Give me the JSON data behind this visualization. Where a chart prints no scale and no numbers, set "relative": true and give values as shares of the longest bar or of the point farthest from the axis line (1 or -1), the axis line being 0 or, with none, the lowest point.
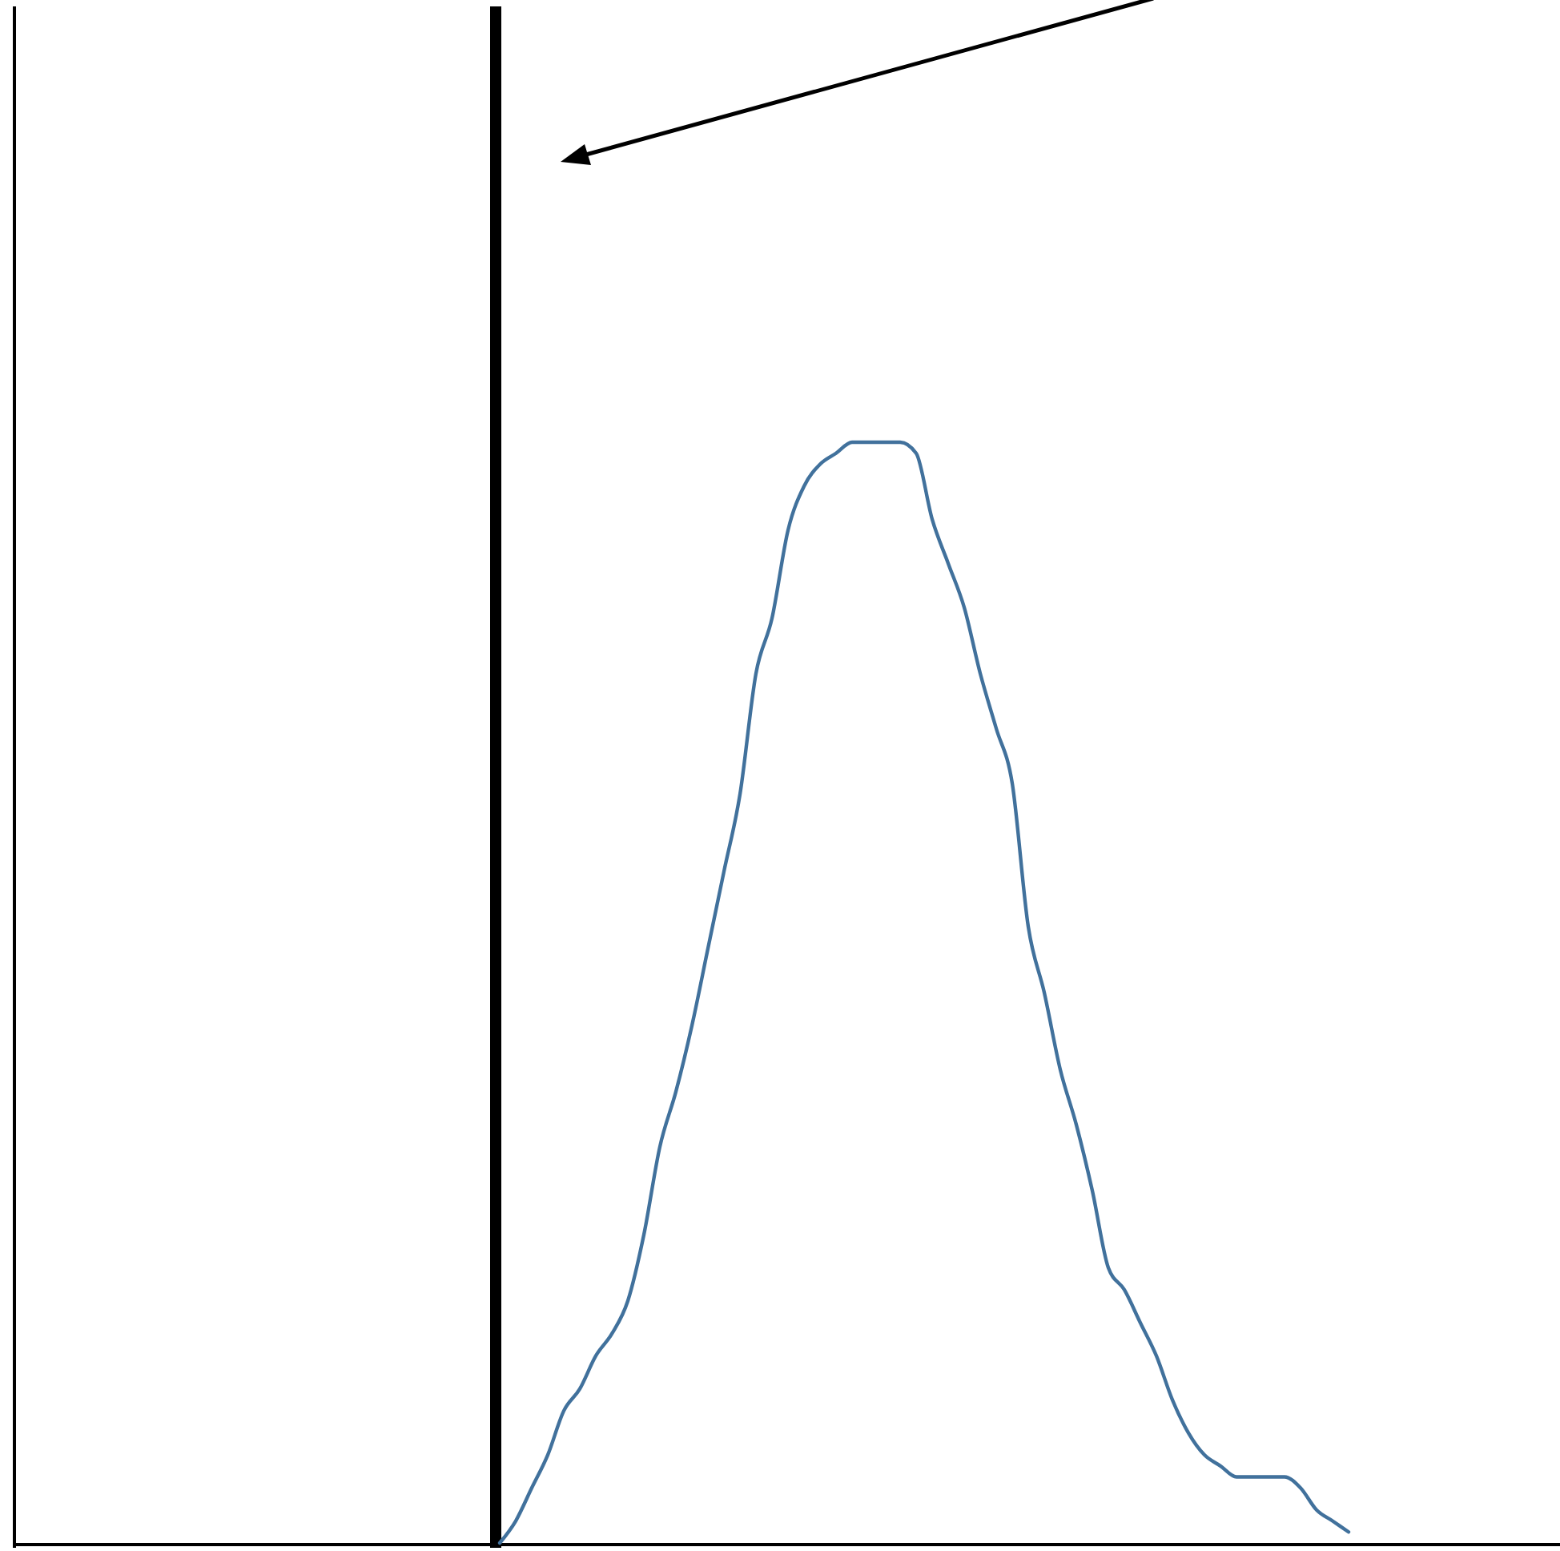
{
  "chart_data": {
    "type": "line",
    "relative": true,
    "categories": [
      null,
      null,
      null,
      null,
      null,
      null,
      null,
      null,
      null,
      null,
      null,
      null,
      null,
      null,
      null,
      null,
      null,
      null,
      null,
      null,
      null,
      null,
      null,
      null,
      null,
      null,
      null,
      null,
      null,
      null,
      null,
      null,
      null,
      null,
      null,
      null,
      null,
      null,
      null,
      null,
      null,
      null,
      null,
      null,
      null,
      null,
      null,
      null,
      null,
      null,
      null,
      null,
      null,
      null,
      null,
      null,
      null,
      null,
      null,
      null,
      null,
      null,
      null,
      null,
      null,
      null,
      null,
      null,
      null,
      null,
      null,
      null,
      null,
      null,
      null,
      null,
      null,
      null,
      null,
      null,
      null,
      null,
      null,
      null,
      null,
      null,
      null,
      null,
      null,
      null,
      null,
      null,
      null,
      null,
      null,
      null,
      null
    ],
    "series": [
      {
        "color": "#41719c",
        "values": [
          null,
          null,
          null,
          null,
          null,
          null,
          null,
          null,
          null,
          null,
          null,
          null,
          null,
          null,
          null,
          null,
          null,
          null,
          null,
          null,
          null,
          null,
          null,
          null,
          null,
          null,
          null,
          null,
          null,
          null,
          0,
          0.02,
          0.05,
          0.08,
          0.12,
          0.14,
          0.17,
          0.19,
          0.22,
          0.28,
          0.36,
          0.41,
          0.47,
          0.54,
          0.61,
          0.68,
          0.79,
          0.84,
          0.92,
          0.96,
          0.98,
          0.99,
          1.0,
          1.0,
          1.0,
          1.0,
          0.99,
          0.93,
          0.89,
          0.85,
          0.79,
          0.74,
          0.69,
          0.56,
          0.5,
          0.43,
          0.38,
          0.32,
          0.25,
          0.23,
          0.2,
          0.17,
          0.13,
          0.1,
          0.08,
          0.07,
          0.06,
          0.06,
          0.06,
          0.06,
          0.05,
          0.03,
          0.02,
          0.01,
          null,
          null,
          null,
          null,
          null,
          null,
          null,
          null,
          null,
          null,
          null,
          null,
          null
        ]
      }
    ],
    "marker": "none",
    "line_style": "solid"
  }
}
